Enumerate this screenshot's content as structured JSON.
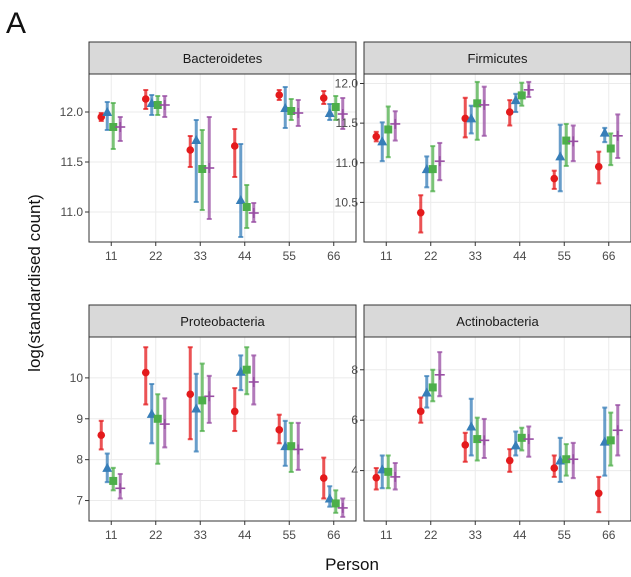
{
  "panel_letter": "A",
  "xlabel": "Person",
  "ylabel": "log(standardised count)",
  "colors": {
    "method1": "#e41a1c",
    "method2": "#377eb8",
    "method3": "#4daf4a",
    "method4": "#984ea3",
    "strip_bg": "#d9d9d9",
    "grid": "#ebebeb",
    "panel_border": "#333333"
  },
  "chart_data": [
    {
      "type": "scatter",
      "title": "Bacteroidetes",
      "categories": [
        "11",
        "22",
        "33",
        "44",
        "55",
        "66"
      ],
      "ylim": [
        10.7,
        12.38
      ],
      "yticks": [
        11.0,
        11.5,
        12.0
      ],
      "ytick_labels": [
        "11.0",
        "11.5",
        "12.0"
      ],
      "grid": true,
      "series": [
        {
          "marker": "circle",
          "color": "method1",
          "values": [
            11.95,
            12.13,
            11.62,
            11.66,
            12.17,
            12.14
          ],
          "lower": [
            11.91,
            12.03,
            11.45,
            11.35,
            12.12,
            12.08
          ],
          "upper": [
            11.99,
            12.22,
            11.76,
            11.83,
            12.22,
            12.21
          ]
        },
        {
          "marker": "triangle",
          "color": "method2",
          "values": [
            12.0,
            12.09,
            11.72,
            11.12,
            12.04,
            11.99
          ],
          "lower": [
            11.82,
            11.97,
            11.1,
            10.75,
            11.84,
            11.92
          ],
          "upper": [
            12.1,
            12.17,
            11.92,
            11.68,
            12.25,
            12.08
          ]
        },
        {
          "marker": "square",
          "color": "method3",
          "values": [
            11.85,
            12.07,
            11.43,
            11.05,
            12.01,
            12.05
          ],
          "lower": [
            11.63,
            11.97,
            11.02,
            10.84,
            11.92,
            11.92
          ],
          "upper": [
            12.09,
            12.16,
            11.82,
            11.27,
            12.13,
            12.16
          ]
        },
        {
          "marker": "plus",
          "color": "method4",
          "values": [
            11.85,
            12.07,
            11.44,
            10.99,
            11.99,
            11.98
          ],
          "lower": [
            11.71,
            11.95,
            10.93,
            10.9,
            11.86,
            11.83
          ],
          "upper": [
            11.95,
            12.16,
            11.95,
            11.09,
            12.12,
            12.14
          ]
        }
      ]
    },
    {
      "type": "scatter",
      "title": "Firmicutes",
      "categories": [
        "11",
        "22",
        "33",
        "44",
        "55",
        "66"
      ],
      "ylim": [
        10.0,
        12.12
      ],
      "yticks": [
        10.5,
        11.0,
        11.5,
        12.0
      ],
      "ytick_labels": [
        "10.5",
        "11.0",
        "11.5",
        "12.0"
      ],
      "grid": true,
      "series": [
        {
          "marker": "circle",
          "color": "method1",
          "values": [
            11.33,
            10.37,
            11.56,
            11.64,
            10.8,
            10.95
          ],
          "lower": [
            11.27,
            10.12,
            11.32,
            11.47,
            10.67,
            10.74
          ],
          "upper": [
            11.39,
            10.59,
            11.82,
            11.79,
            10.9,
            11.14
          ]
        },
        {
          "marker": "triangle",
          "color": "method2",
          "values": [
            11.27,
            10.92,
            11.56,
            11.79,
            11.08,
            11.38
          ],
          "lower": [
            11.02,
            10.69,
            11.37,
            11.64,
            10.64,
            11.26
          ],
          "upper": [
            11.51,
            11.08,
            11.72,
            11.87,
            11.48,
            11.44
          ]
        },
        {
          "marker": "square",
          "color": "method3",
          "values": [
            11.42,
            10.92,
            11.75,
            11.85,
            11.28,
            11.18
          ],
          "lower": [
            11.07,
            10.64,
            11.29,
            11.72,
            10.96,
            10.97
          ],
          "upper": [
            11.71,
            11.21,
            12.02,
            12.01,
            11.49,
            11.37
          ]
        },
        {
          "marker": "plus",
          "color": "method4",
          "values": [
            11.49,
            11.02,
            11.73,
            11.92,
            11.27,
            11.34
          ],
          "lower": [
            11.28,
            10.78,
            11.34,
            11.83,
            11.02,
            11.06
          ],
          "upper": [
            11.65,
            11.25,
            11.96,
            12.02,
            11.47,
            11.61
          ]
        }
      ]
    },
    {
      "type": "scatter",
      "title": "Proteobacteria",
      "categories": [
        "11",
        "22",
        "33",
        "44",
        "55",
        "66"
      ],
      "ylim": [
        6.5,
        11.0
      ],
      "yticks": [
        7,
        8,
        9,
        10
      ],
      "ytick_labels": [
        "7",
        "8",
        "9",
        "10"
      ],
      "grid": true,
      "series": [
        {
          "marker": "circle",
          "color": "method1",
          "values": [
            8.6,
            10.13,
            9.6,
            9.18,
            8.73,
            7.55
          ],
          "lower": [
            8.25,
            9.35,
            8.5,
            8.7,
            8.4,
            7.05
          ],
          "upper": [
            8.95,
            10.75,
            10.75,
            9.75,
            9.1,
            8.05
          ]
        },
        {
          "marker": "triangle",
          "color": "method2",
          "values": [
            7.8,
            9.12,
            9.25,
            10.15,
            8.33,
            7.05
          ],
          "lower": [
            7.45,
            8.4,
            8.2,
            9.7,
            7.85,
            6.85
          ],
          "upper": [
            8.15,
            9.85,
            10.1,
            10.55,
            8.95,
            7.35
          ]
        },
        {
          "marker": "square",
          "color": "method3",
          "values": [
            7.48,
            9.0,
            9.45,
            10.2,
            8.33,
            6.93
          ],
          "lower": [
            7.25,
            7.9,
            8.7,
            9.6,
            7.7,
            6.7
          ],
          "upper": [
            7.8,
            9.6,
            10.35,
            10.75,
            8.9,
            7.25
          ]
        },
        {
          "marker": "plus",
          "color": "method4",
          "values": [
            7.3,
            8.87,
            9.55,
            9.9,
            8.25,
            6.82
          ],
          "lower": [
            7.05,
            8.3,
            8.9,
            9.35,
            7.75,
            6.6
          ],
          "upper": [
            7.65,
            9.5,
            10.05,
            10.55,
            8.9,
            7.05
          ]
        }
      ]
    },
    {
      "type": "scatter",
      "title": "Actinobacteria",
      "categories": [
        "11",
        "22",
        "33",
        "44",
        "55",
        "66"
      ],
      "ylim": [
        2.0,
        9.3
      ],
      "yticks": [
        4,
        6,
        8
      ],
      "ytick_labels": [
        "4",
        "6",
        "8"
      ],
      "grid": true,
      "series": [
        {
          "marker": "circle",
          "color": "method1",
          "values": [
            3.72,
            6.35,
            5.02,
            4.4,
            4.1,
            3.1
          ],
          "lower": [
            3.25,
            5.9,
            4.35,
            3.95,
            3.75,
            2.35
          ],
          "upper": [
            4.1,
            6.9,
            5.5,
            4.85,
            4.6,
            3.75
          ]
        },
        {
          "marker": "triangle",
          "color": "method2",
          "values": [
            4.05,
            7.1,
            5.75,
            5.0,
            4.4,
            5.15
          ],
          "lower": [
            3.3,
            6.5,
            4.6,
            4.6,
            3.55,
            3.8
          ],
          "upper": [
            4.6,
            7.75,
            6.85,
            5.55,
            5.3,
            6.5
          ]
        },
        {
          "marker": "square",
          "color": "method3",
          "values": [
            3.95,
            7.3,
            5.25,
            5.3,
            4.45,
            5.2
          ],
          "lower": [
            3.3,
            6.75,
            4.4,
            4.8,
            3.8,
            4.2
          ],
          "upper": [
            4.6,
            8.0,
            6.1,
            5.7,
            5.05,
            6.3
          ]
        },
        {
          "marker": "plus",
          "color": "method4",
          "values": [
            3.75,
            7.8,
            5.2,
            5.25,
            4.45,
            5.6
          ],
          "lower": [
            3.25,
            6.95,
            4.5,
            4.55,
            3.7,
            4.6
          ],
          "upper": [
            4.3,
            8.7,
            6.05,
            5.75,
            5.1,
            6.6
          ]
        }
      ]
    }
  ]
}
